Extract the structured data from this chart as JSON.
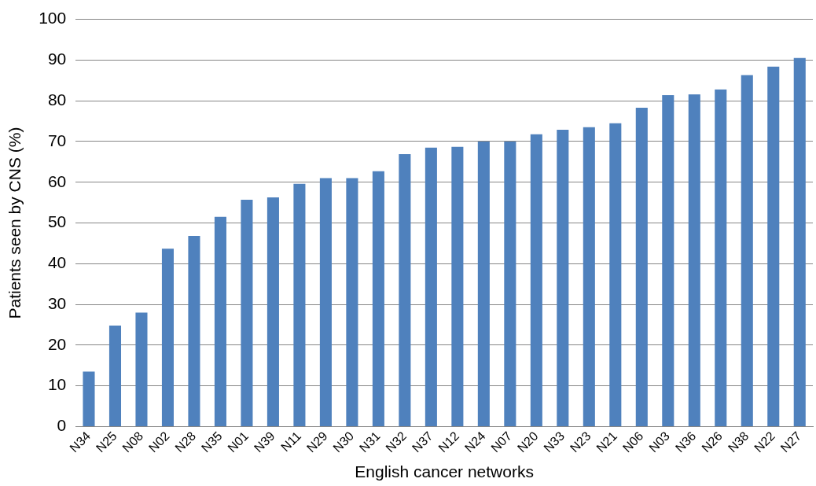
{
  "chart_data": {
    "type": "bar",
    "xlabel": "English cancer networks",
    "ylabel": "Patients seen by CNS (%)",
    "categories": [
      "N34",
      "N25",
      "N08",
      "N02",
      "N28",
      "N35",
      "N01",
      "N39",
      "N11",
      "N29",
      "N30",
      "N31",
      "N32",
      "N37",
      "N12",
      "N24",
      "N07",
      "N20",
      "N33",
      "N23",
      "N21",
      "N06",
      "N03",
      "N36",
      "N26",
      "N38",
      "N22",
      "N27"
    ],
    "values": [
      13.5,
      24.8,
      28,
      43.7,
      46.8,
      51.5,
      55.7,
      56.3,
      59.6,
      61,
      61,
      62.7,
      66.9,
      68.5,
      68.7,
      70,
      70,
      71.8,
      72.9,
      73.5,
      74.5,
      78.3,
      81.4,
      81.6,
      82.8,
      86.3,
      88.4,
      90.5
    ],
    "color": "#4f81bd",
    "ylim": [
      0,
      100
    ],
    "yticks": [
      0,
      10,
      20,
      30,
      40,
      50,
      60,
      70,
      80,
      90,
      100
    ],
    "grid": "y",
    "legend": false
  }
}
